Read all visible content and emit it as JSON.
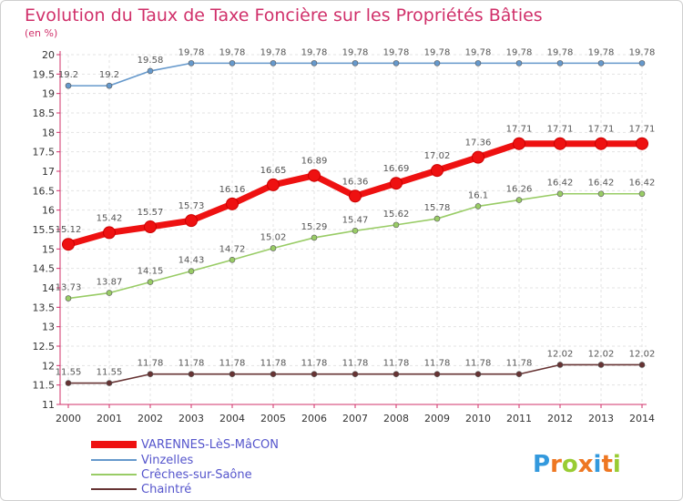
{
  "chart_data": {
    "type": "line",
    "title": "Evolution du Taux de Taxe Foncière sur les Propriétés Bâties",
    "unit_label": "(en %)",
    "x": [
      "2000",
      "2001",
      "2002",
      "2003",
      "2004",
      "2005",
      "2006",
      "2007",
      "2008",
      "2009",
      "2010",
      "2011",
      "2012",
      "2013",
      "2014"
    ],
    "ylim": [
      11,
      20
    ],
    "yticks": [
      "11",
      "11.5",
      "12",
      "12.5",
      "13",
      "13.5",
      "14",
      "14.5",
      "15",
      "15.5",
      "16",
      "16.5",
      "17",
      "17.5",
      "18",
      "18.5",
      "19",
      "19.5",
      "20"
    ],
    "grid": true,
    "legend_position": "bottom-left",
    "series": [
      {
        "name": "VARENNES-LèS-MâCON",
        "color": "#ee1111",
        "values": [
          15.12,
          15.42,
          15.57,
          15.73,
          16.16,
          16.65,
          16.89,
          16.36,
          16.69,
          17.02,
          17.36,
          17.71,
          17.71,
          17.71,
          17.71
        ],
        "labels": [
          "15.12",
          "15.42",
          "15.57",
          "15.73",
          "16.16",
          "16.65",
          "16.89",
          "16.36",
          "16.69",
          "17.02",
          "17.36",
          "17.71",
          "17.71",
          "17.71",
          "17.71"
        ]
      },
      {
        "name": "Vinzelles",
        "color": "#6699cc",
        "values": [
          19.2,
          19.2,
          19.58,
          19.78,
          19.78,
          19.78,
          19.78,
          19.78,
          19.78,
          19.78,
          19.78,
          19.78,
          19.78,
          19.78,
          19.78
        ],
        "labels": [
          "19.2",
          "19.2",
          "19.58",
          "19.78",
          "19.78",
          "19.78",
          "19.78",
          "19.78",
          "19.78",
          "19.78",
          "19.78",
          "19.78",
          "19.78",
          "19.78",
          "19.78"
        ]
      },
      {
        "name": "Crêches-sur-Saône",
        "color": "#99cc66",
        "values": [
          13.73,
          13.87,
          14.15,
          14.43,
          14.72,
          15.02,
          15.29,
          15.47,
          15.62,
          15.78,
          16.1,
          16.26,
          16.42,
          16.42,
          16.42
        ],
        "labels": [
          "13.73",
          "13.87",
          "14.15",
          "14.43",
          "14.72",
          "15.02",
          "15.29",
          "15.47",
          "15.62",
          "15.78",
          "16.1",
          "16.26",
          "16.42",
          "16.42",
          "16.42"
        ]
      },
      {
        "name": "Chaintré",
        "color": "#663333",
        "values": [
          11.55,
          11.55,
          11.78,
          11.78,
          11.78,
          11.78,
          11.78,
          11.78,
          11.78,
          11.78,
          11.78,
          11.78,
          12.02,
          12.02,
          12.02
        ],
        "labels": [
          "11.55",
          "11.55",
          "11.78",
          "11.78",
          "11.78",
          "11.78",
          "11.78",
          "11.78",
          "11.78",
          "11.78",
          "11.78",
          "11.78",
          "12.02",
          "12.02",
          "12.02"
        ]
      }
    ]
  },
  "brand": {
    "letters": [
      {
        "ch": "P",
        "color": "#3399dd"
      },
      {
        "ch": "r",
        "color": "#ee7722"
      },
      {
        "ch": "o",
        "color": "#99cc33"
      },
      {
        "ch": "x",
        "color": "#ee7722"
      },
      {
        "ch": "i",
        "color": "#3399dd"
      },
      {
        "ch": "t",
        "color": "#ee7722"
      },
      {
        "ch": "i",
        "color": "#99cc33"
      }
    ]
  }
}
